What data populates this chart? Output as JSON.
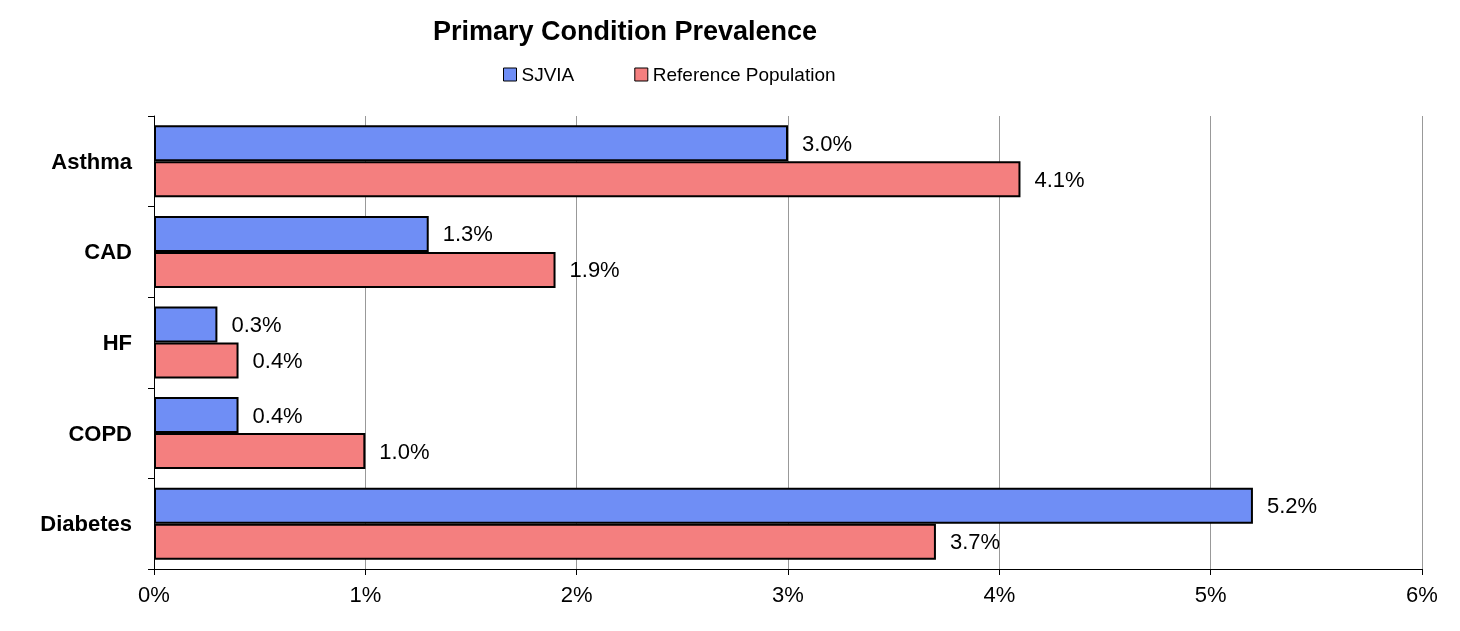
{
  "chart_data": {
    "type": "bar",
    "orientation": "horizontal",
    "title": "Primary Condition Prevalence",
    "categories": [
      "Asthma",
      "CAD",
      "HF",
      "COPD",
      "Diabetes"
    ],
    "series": [
      {
        "name": "SJVIA",
        "color": "#6f8ef5",
        "values": [
          3.0,
          1.3,
          0.3,
          0.4,
          5.2
        ],
        "value_labels": [
          "3.0%",
          "1.3%",
          "0.3%",
          "0.4%",
          "5.2%"
        ]
      },
      {
        "name": "Reference Population",
        "color": "#f47f7f",
        "values": [
          4.1,
          1.9,
          0.4,
          1.0,
          3.7
        ],
        "value_labels": [
          "4.1%",
          "1.9%",
          "0.4%",
          "1.0%",
          "3.7%"
        ]
      }
    ],
    "xlim": [
      0,
      6
    ],
    "xticks": [
      {
        "value": 0,
        "label": "0%"
      },
      {
        "value": 1,
        "label": "1%"
      },
      {
        "value": 2,
        "label": "2%"
      },
      {
        "value": 3,
        "label": "3%"
      },
      {
        "value": 4,
        "label": "4%"
      },
      {
        "value": 5,
        "label": "5%"
      },
      {
        "value": 6,
        "label": "6%"
      }
    ],
    "grid": "x",
    "legend": "top"
  }
}
